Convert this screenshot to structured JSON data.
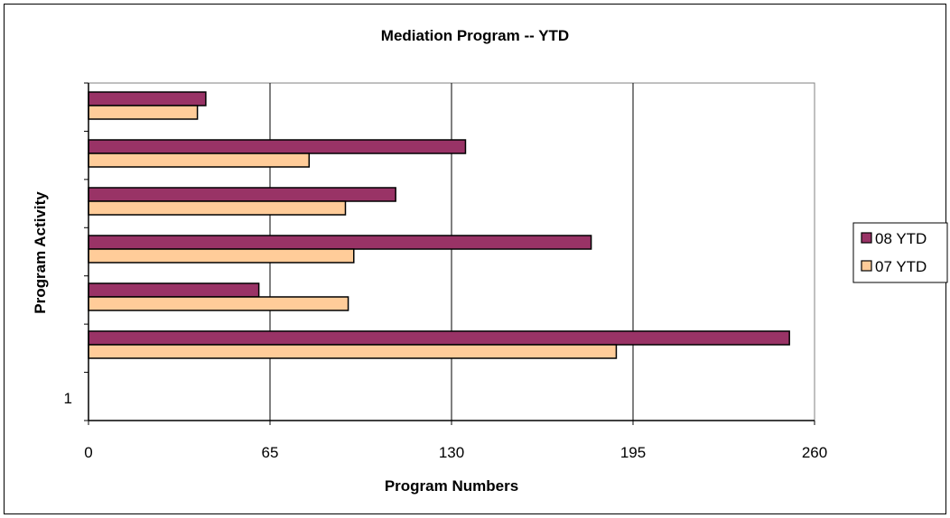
{
  "chart_data": {
    "type": "bar",
    "orientation": "horizontal",
    "title": "Mediation Program -- YTD",
    "xlabel": "Program Numbers",
    "ylabel": "Program Activity",
    "xlim": [
      0,
      260
    ],
    "xticks": [
      "0",
      "65",
      "130",
      "195",
      "260"
    ],
    "yticks": [
      "1"
    ],
    "grid": true,
    "legend_position": "right",
    "categories": [
      "",
      "",
      "",
      "",
      "",
      ""
    ],
    "series": [
      {
        "name": "08 YTD",
        "color": "#993366",
        "values": [
          251,
          61,
          180,
          110,
          135,
          42
        ]
      },
      {
        "name": "07 YTD",
        "color": "#FFCC99",
        "values": [
          189,
          93,
          95,
          92,
          79,
          39
        ]
      }
    ]
  }
}
